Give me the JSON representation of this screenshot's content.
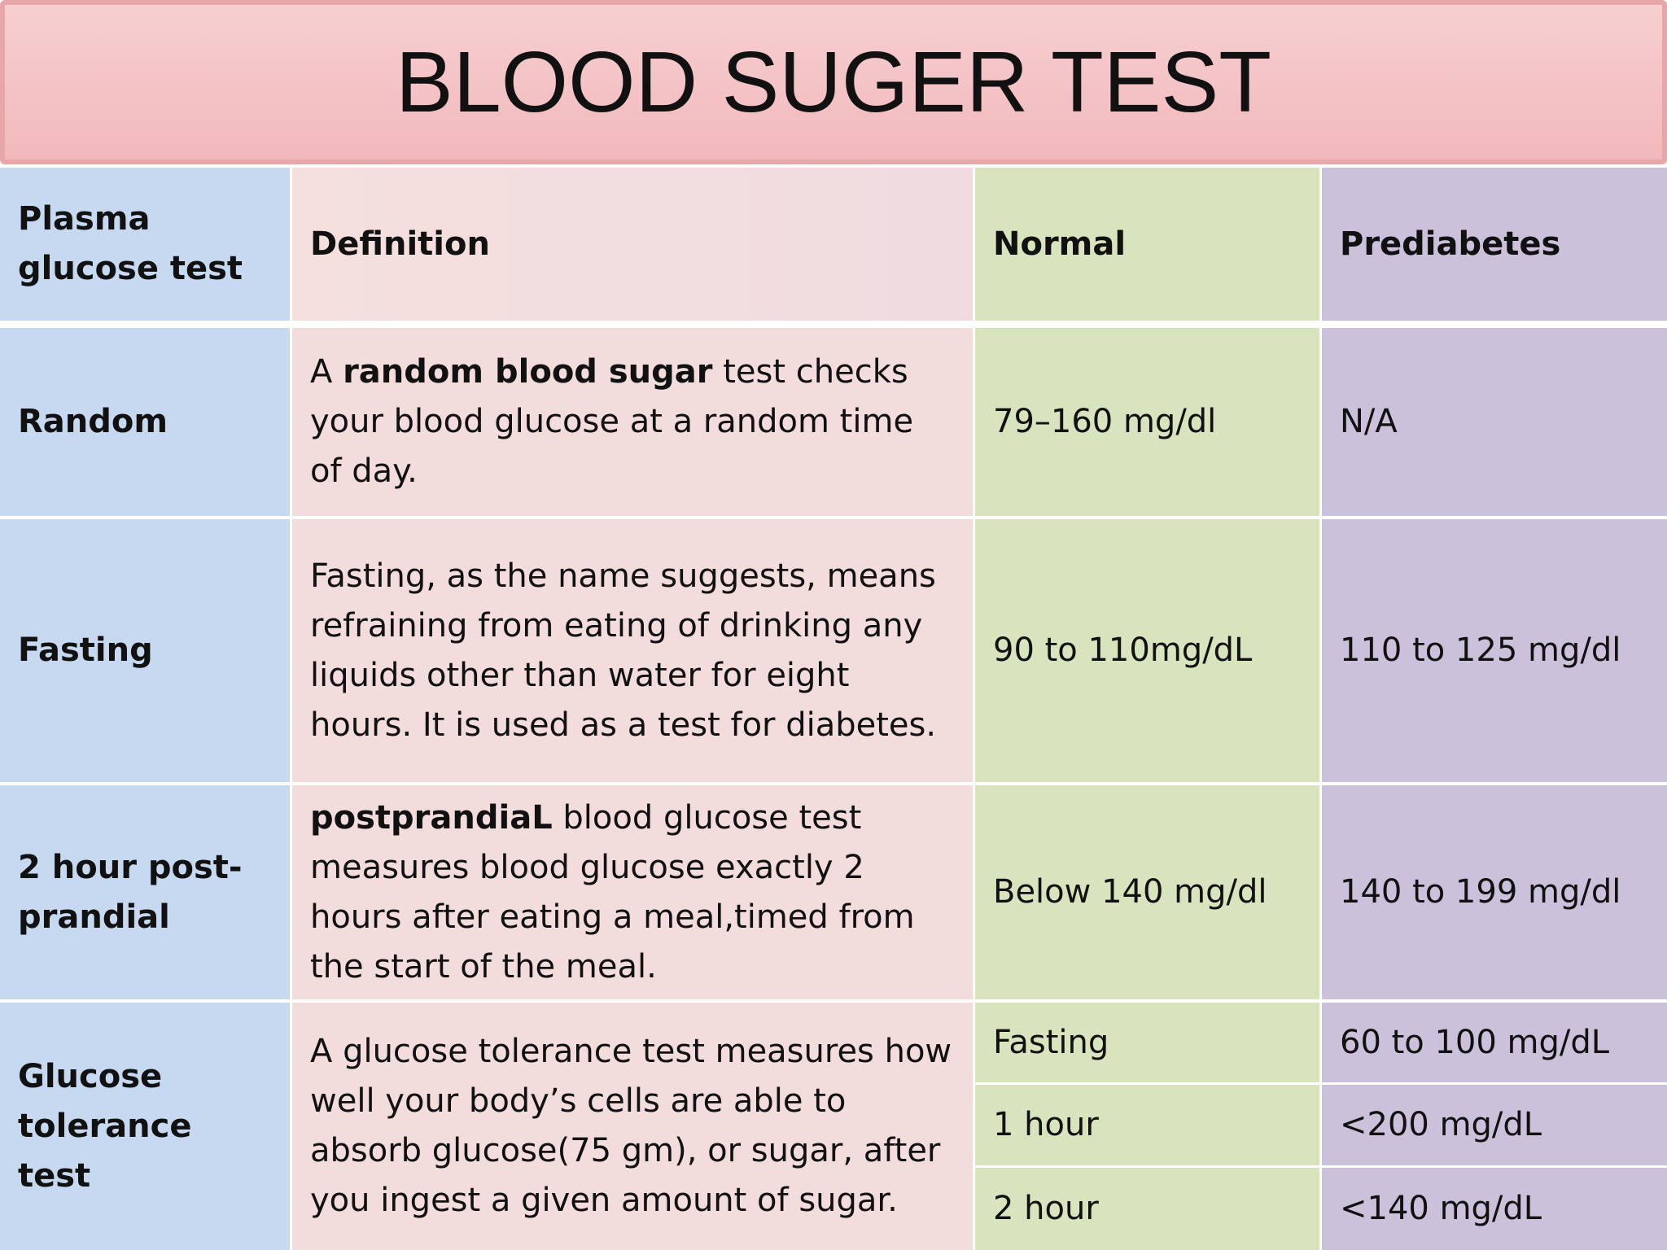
{
  "title": "BLOOD SUGER TEST",
  "table": {
    "header": [
      "Plasma glucose test",
      "Definition",
      "Normal",
      "Prediabetes"
    ],
    "rows": [
      {
        "test": "Random",
        "definition": [
          {
            "text": "A "
          },
          {
            "text": "random blood sugar",
            "bold": true
          },
          {
            "text": " test checks your blood glucose at a random time of day."
          }
        ],
        "normal": "79–160 mg/dl",
        "prediabetes": "N/A"
      },
      {
        "test": "Fasting",
        "definition": [
          {
            "text": "Fasting, as the name suggests, means refraining from eating of drinking any liquids other than water for eight hours. It is used as a test for diabetes."
          }
        ],
        "normal": "90 to 110mg/dL",
        "prediabetes": "110 to 125 mg/dl"
      },
      {
        "test": "2 hour post-prandial",
        "definition": [
          {
            "text": "postprandiaL",
            "bold": true
          },
          {
            "text": " blood glucose test measures blood glucose exactly 2 hours after eating a meal,timed from the start of the meal."
          }
        ],
        "normal": "Below 140 mg/dl",
        "prediabetes": "140 to 199 mg/dl"
      },
      {
        "test": "Glucose tolerance test",
        "definition": [
          {
            "text": "A glucose tolerance test measures how well your body’s cells are able to absorb glucose(75 gm), or sugar, after you ingest a given amount of sugar."
          }
        ],
        "results": [
          {
            "time": "Fasting",
            "value": "60 to 100 mg/dL"
          },
          {
            "time": "1 hour",
            "value": "<200 mg/dL"
          },
          {
            "time": "2 hour",
            "value": "<140 mg/dL"
          }
        ]
      }
    ]
  }
}
